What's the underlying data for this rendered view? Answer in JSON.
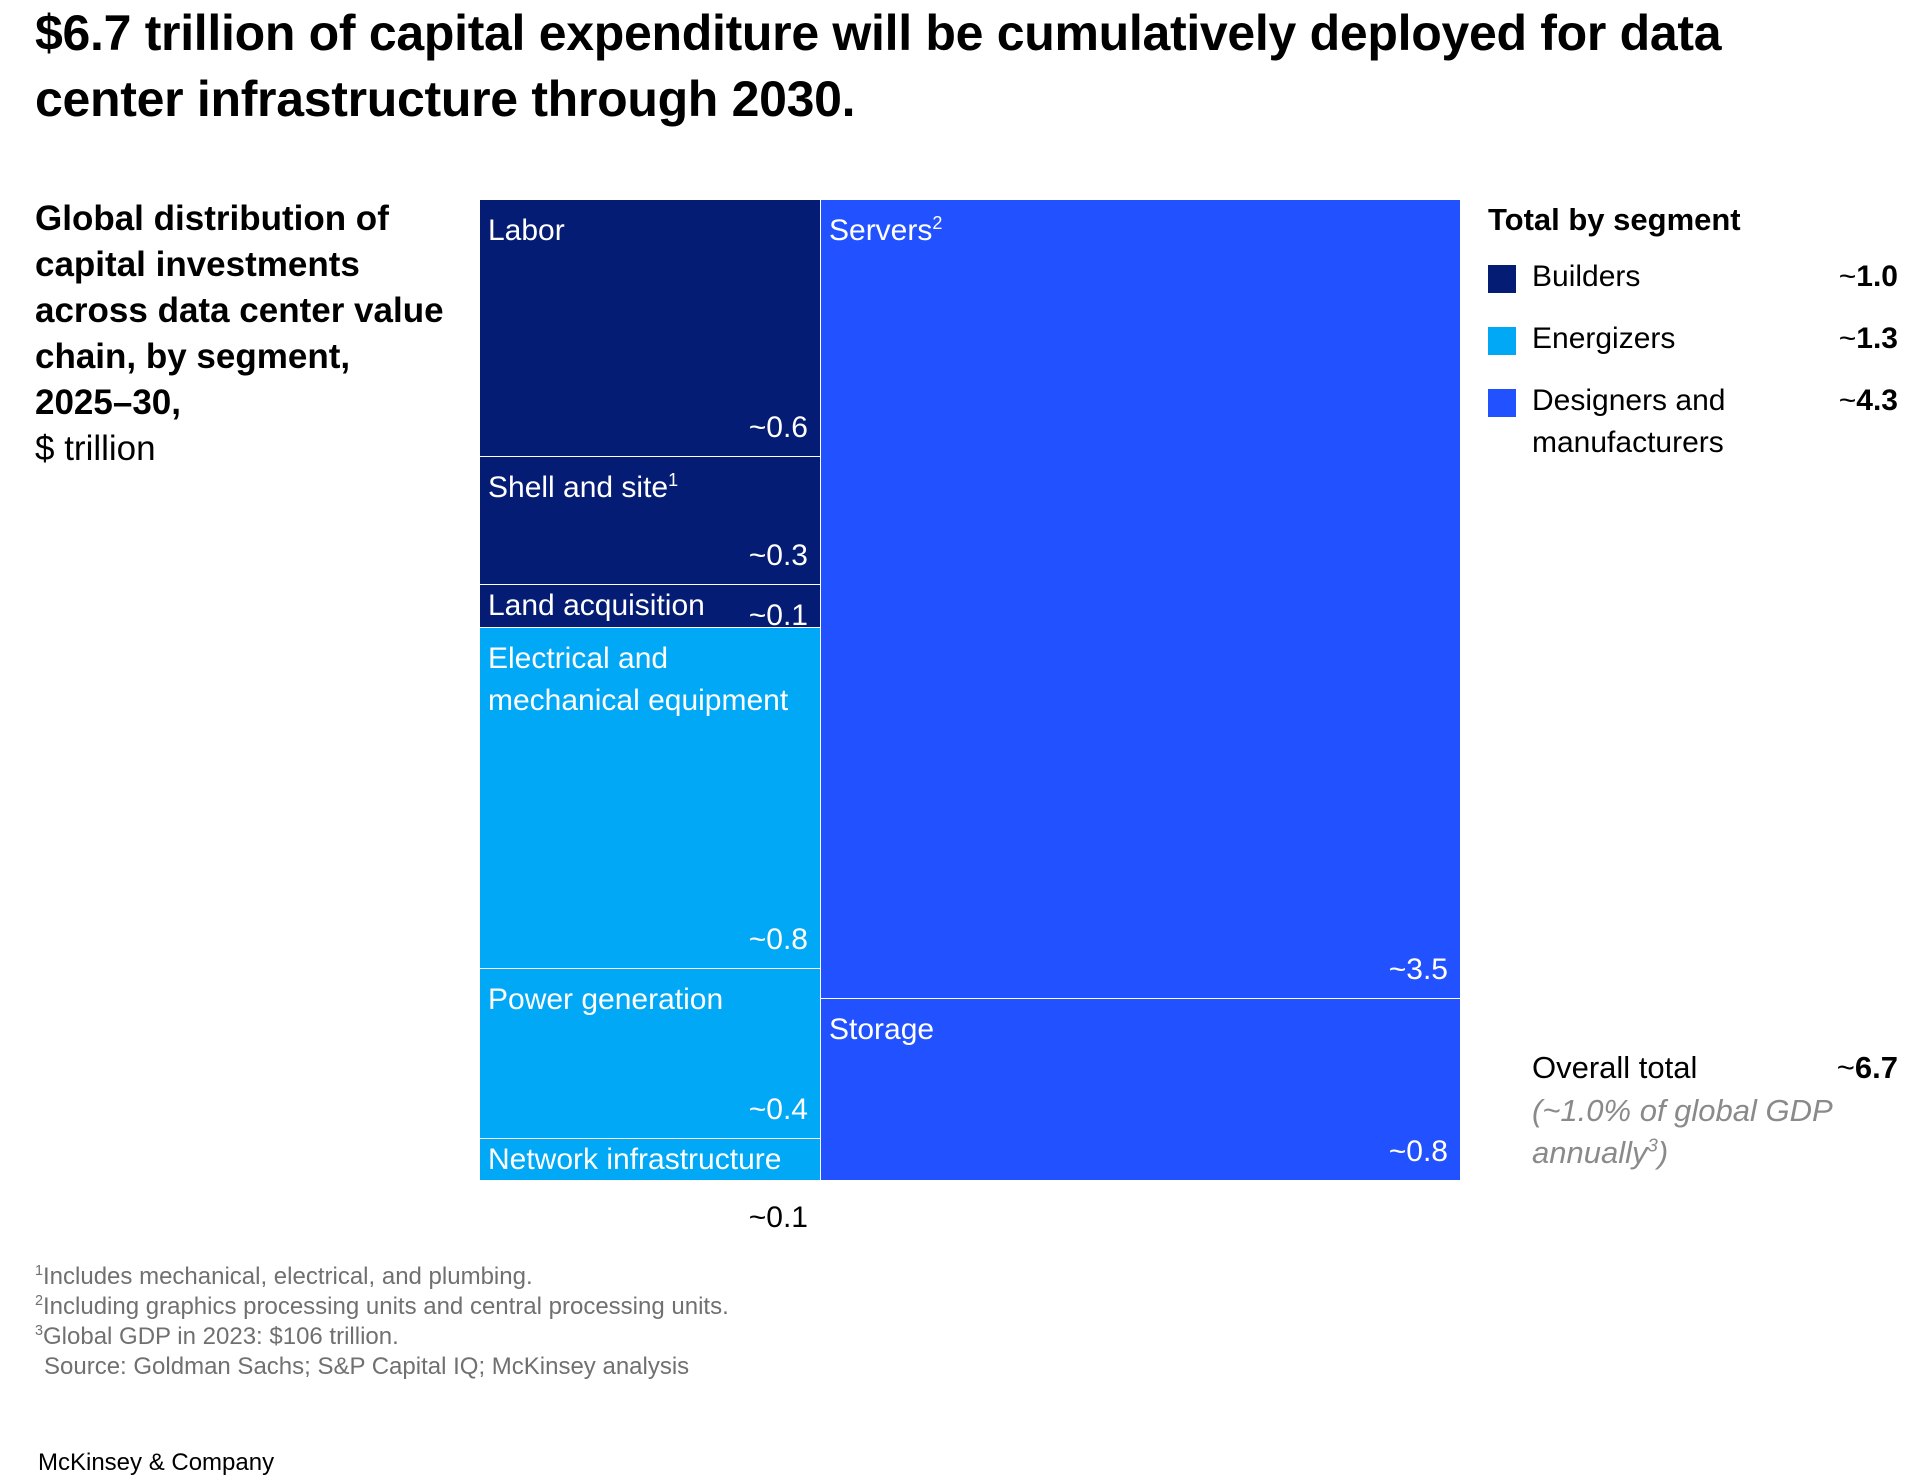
{
  "headline": "$6.7 trillion of capital expenditure will be cumulatively deployed for data center infrastructure through 2030.",
  "subtitle": "Global distribution of capital investments across data center value chain, by segment, 2025–30,",
  "unit": "$ trillion",
  "colors": {
    "builders": "#051c75",
    "energizers": "#00a8f5",
    "designers": "#2251ff",
    "divider": "#ffffff"
  },
  "chart_data": {
    "type": "treemap",
    "unit": "$ trillion",
    "cells": [
      {
        "label": "Labor",
        "sup": "",
        "value": 0.6,
        "value_label": "~0.6",
        "segment": "Builders"
      },
      {
        "label": "Shell and site",
        "sup": "1",
        "value": 0.3,
        "value_label": "~0.3",
        "segment": "Builders"
      },
      {
        "label": "Land acquisition",
        "sup": "",
        "value": 0.1,
        "value_label": "~0.1",
        "segment": "Builders"
      },
      {
        "label": "Electrical and mechanical equipment",
        "sup": "",
        "value": 0.8,
        "value_label": "~0.8",
        "segment": "Energizers"
      },
      {
        "label": "Power generation",
        "sup": "",
        "value": 0.4,
        "value_label": "~0.4",
        "segment": "Energizers"
      },
      {
        "label": "Network infrastructure",
        "sup": "",
        "value": 0.1,
        "value_label": "~0.1",
        "segment": "Energizers"
      },
      {
        "label": "Servers",
        "sup": "2",
        "value": 3.5,
        "value_label": "~3.5",
        "segment": "Designers and manufacturers"
      },
      {
        "label": "Storage",
        "sup": "",
        "value": 0.8,
        "value_label": "~0.8",
        "segment": "Designers and manufacturers"
      }
    ],
    "legend": {
      "title": "Total by segment",
      "items": [
        {
          "name": "Builders",
          "value_label": "~1.0",
          "tilde": "~",
          "num": "1.0",
          "color": "#051c75"
        },
        {
          "name": "Energizers",
          "value_label": "~1.3",
          "tilde": "~",
          "num": "1.3",
          "color": "#00a8f5"
        },
        {
          "name": "Designers and manufacturers",
          "value_label": "~4.3",
          "tilde": "~",
          "num": "4.3",
          "color": "#2251ff"
        }
      ]
    },
    "total": {
      "label": "Overall total",
      "tilde": "~",
      "num": "6.7",
      "note_prefix": "(~1.0% of global GDP annually",
      "note_sup": "3",
      "note_suffix": ")"
    }
  },
  "footnotes": [
    {
      "sup": "1",
      "text": "Includes mechanical, electrical, and plumbing."
    },
    {
      "sup": "2",
      "text": "Including graphics processing units and central processing units."
    },
    {
      "sup": "3",
      "text": "Global GDP in 2023: $106 trillion."
    }
  ],
  "source": "Source: Goldman Sachs; S&P Capital IQ; McKinsey analysis",
  "brand": "McKinsey & Company"
}
